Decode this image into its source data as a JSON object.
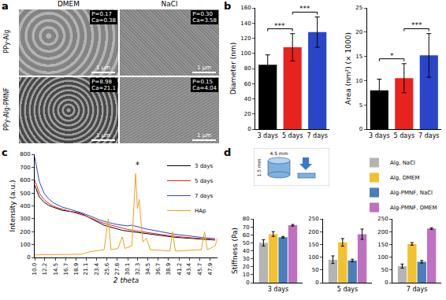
{
  "micrographs": {
    "panel": "a",
    "columns": [
      "DMEM",
      "NaCl"
    ],
    "rows": [
      {
        "label": "PPy-Alg",
        "cells": [
          [
            "P=0.17",
            "Ca=0.38"
          ],
          [
            "P=0.30",
            "Ca=3.58"
          ]
        ]
      },
      {
        "label": "PPy-Alg-PMNF",
        "cells": [
          [
            "P=8.98",
            "Ca=21.1"
          ],
          [
            "P=0.15",
            "Ca=4.04"
          ]
        ]
      }
    ],
    "scale_bar": "1 μm"
  },
  "chart_data": [
    {
      "panel": "b",
      "type": "bar",
      "categories": [
        "3 days",
        "5 days",
        "7 days"
      ],
      "values": [
        85,
        108,
        128
      ],
      "error": [
        13,
        18,
        20
      ],
      "colors": [
        "#000000",
        "#e8231f",
        "#2a45c8"
      ],
      "ylabel": "Diameter (nm)",
      "ylim": [
        0,
        160
      ],
      "yticks": [
        0,
        20,
        40,
        60,
        80,
        100,
        120,
        140,
        160
      ],
      "grid": false,
      "significance": [
        {
          "pair": [
            0,
            1
          ],
          "label": "***"
        },
        {
          "pair": [
            1,
            2
          ],
          "label": "***"
        }
      ]
    },
    {
      "panel": "b",
      "type": "bar",
      "categories": [
        "3 days",
        "5 days",
        "7 days"
      ],
      "values": [
        8,
        10.5,
        15.2
      ],
      "error": [
        2.3,
        3,
        4.5
      ],
      "colors": [
        "#000000",
        "#e8231f",
        "#2a45c8"
      ],
      "ylabel": "Area (nm²) (× 1000)",
      "ylim": [
        0,
        25
      ],
      "yticks": [
        0,
        5,
        10,
        15,
        20,
        25
      ],
      "grid": false,
      "significance": [
        {
          "pair": [
            0,
            1
          ],
          "label": "*"
        },
        {
          "pair": [
            1,
            2
          ],
          "label": "***"
        }
      ]
    },
    {
      "panel": "c",
      "type": "line",
      "xlabel": "2 theta",
      "ylabel": "Intensity (a.u.)",
      "xlim": [
        10,
        49.5
      ],
      "xticks": [
        {
          "value": 10,
          "label": "10.0"
        },
        12.2,
        14.5,
        16.7,
        18.9,
        21.1,
        23.4,
        25.6,
        27.8,
        30.1,
        32.3,
        34.5,
        36.7,
        38.9,
        41.2,
        43.4,
        45.7,
        47.9
      ],
      "ylim": [
        0,
        800
      ],
      "yticks": [
        0,
        100,
        200,
        300,
        400,
        500,
        600,
        700,
        800
      ],
      "grid": false,
      "legend": "top right",
      "series": [
        {
          "name": "3 days",
          "color": "#000000",
          "x": [
            10,
            11,
            12,
            13,
            14,
            15,
            16,
            17,
            18,
            19,
            20,
            21,
            22,
            23,
            24,
            25,
            26,
            27,
            28,
            29,
            30,
            31,
            32,
            33,
            34,
            35,
            36,
            37,
            38,
            39,
            40,
            41,
            42,
            43,
            44,
            45,
            46,
            47,
            48,
            49
          ],
          "values": [
            560,
            470,
            430,
            405,
            390,
            375,
            365,
            360,
            355,
            350,
            340,
            325,
            305,
            285,
            265,
            250,
            240,
            230,
            220,
            210,
            205,
            200,
            195,
            190,
            185,
            180,
            175,
            170,
            165,
            160,
            158,
            155,
            152,
            150,
            147,
            145,
            142,
            140,
            138,
            135
          ]
        },
        {
          "name": "5 days",
          "color": "#e8231f",
          "x": [
            10,
            11,
            12,
            13,
            14,
            15,
            16,
            17,
            18,
            19,
            20,
            21,
            22,
            23,
            24,
            25,
            26,
            27,
            28,
            29,
            30,
            31,
            32,
            33,
            34,
            35,
            36,
            37,
            38,
            39,
            40,
            41,
            42,
            43,
            44,
            45,
            46,
            47,
            48,
            49
          ],
          "values": [
            600,
            500,
            450,
            420,
            400,
            385,
            375,
            365,
            355,
            345,
            335,
            322,
            308,
            292,
            278,
            265,
            255,
            245,
            235,
            225,
            218,
            212,
            206,
            200,
            195,
            190,
            185,
            180,
            175,
            170,
            166,
            162,
            158,
            155,
            152,
            149,
            146,
            143,
            140,
            138
          ]
        },
        {
          "name": "7 days",
          "color": "#2a45c8",
          "x": [
            10,
            11,
            12,
            13,
            14,
            15,
            16,
            17,
            18,
            19,
            20,
            21,
            22,
            23,
            24,
            25,
            26,
            27,
            28,
            29,
            30,
            31,
            32,
            33,
            34,
            35,
            36,
            37,
            38,
            39,
            40,
            41,
            42,
            43,
            44,
            45,
            46,
            47,
            48,
            49
          ],
          "values": [
            780,
            590,
            500,
            455,
            425,
            405,
            390,
            380,
            370,
            360,
            348,
            335,
            320,
            305,
            292,
            280,
            270,
            262,
            255,
            248,
            245,
            250,
            240,
            230,
            222,
            215,
            208,
            200,
            193,
            187,
            182,
            177,
            172,
            168,
            164,
            160,
            156,
            152,
            149,
            146
          ]
        },
        {
          "name": "HAp",
          "color": "#f0a020",
          "x": [
            10,
            20,
            22,
            25,
            25.9,
            26.5,
            28,
            28.9,
            29.5,
            31,
            31.8,
            32.2,
            32.6,
            32.9,
            33.4,
            34.1,
            35,
            39.2,
            39.8,
            40.4,
            46,
            46.7,
            47.3,
            49,
            49.5
          ],
          "values": [
            20,
            25,
            45,
            60,
            300,
            60,
            70,
            160,
            70,
            90,
            650,
            380,
            450,
            300,
            120,
            150,
            60,
            50,
            200,
            50,
            60,
            200,
            60,
            90,
            150
          ]
        }
      ],
      "annotations": [
        {
          "x": 32.3,
          "y": 720,
          "text": "*"
        }
      ]
    },
    {
      "panel": "d",
      "type": "bar",
      "categories": [
        "3 days"
      ],
      "ylabel": "Stiffness (Pa)",
      "ylim": [
        0,
        80
      ],
      "yticks": [
        0,
        10,
        20,
        30,
        40,
        50,
        60,
        70,
        80
      ],
      "grid": false,
      "legend": "top right",
      "inset_labels": [
        "4.5 mm",
        "1.5 mm"
      ],
      "series": [
        {
          "name": "Alg, NaCl",
          "color": "#b4b4b4",
          "values": [
            50
          ],
          "error": [
            4
          ]
        },
        {
          "name": "Alg, DMEM",
          "color": "#f2c12e",
          "values": [
            61
          ],
          "error": [
            3
          ]
        },
        {
          "name": "Alg-PMNF, NaCl",
          "color": "#4a7ebb",
          "values": [
            57
          ],
          "error": [
            1
          ]
        },
        {
          "name": "Alg-PMNF, DMEM",
          "color": "#c070c0",
          "values": [
            72
          ],
          "error": [
            1
          ]
        }
      ]
    },
    {
      "panel": "d",
      "type": "bar",
      "categories": [
        "5 days"
      ],
      "ylim": [
        0,
        250
      ],
      "yticks": [
        0,
        50,
        100,
        150,
        200,
        250
      ],
      "grid": false,
      "series": [
        {
          "name": "Alg, NaCl",
          "color": "#b4b4b4",
          "values": [
            90
          ],
          "error": [
            15
          ]
        },
        {
          "name": "Alg, DMEM",
          "color": "#f2c12e",
          "values": [
            158
          ],
          "error": [
            15
          ]
        },
        {
          "name": "Alg-PMNF, NaCl",
          "color": "#4a7ebb",
          "values": [
            87
          ],
          "error": [
            5
          ]
        },
        {
          "name": "Alg-PMNF, DMEM",
          "color": "#c070c0",
          "values": [
            190
          ],
          "error": [
            20
          ]
        }
      ]
    },
    {
      "panel": "d",
      "type": "bar",
      "categories": [
        "7 days"
      ],
      "ylim": [
        0,
        250
      ],
      "yticks": [
        0,
        50,
        100,
        150,
        200,
        250
      ],
      "grid": false,
      "series": [
        {
          "name": "Alg, NaCl",
          "color": "#b4b4b4",
          "values": [
            65
          ],
          "error": [
            8
          ]
        },
        {
          "name": "Alg, DMEM",
          "color": "#f2c12e",
          "values": [
            152
          ],
          "error": [
            5
          ]
        },
        {
          "name": "Alg-PMNF, NaCl",
          "color": "#4a7ebb",
          "values": [
            82
          ],
          "error": [
            5
          ]
        },
        {
          "name": "Alg-PMNF, DMEM",
          "color": "#c070c0",
          "values": [
            212
          ],
          "error": [
            3
          ]
        }
      ]
    }
  ]
}
